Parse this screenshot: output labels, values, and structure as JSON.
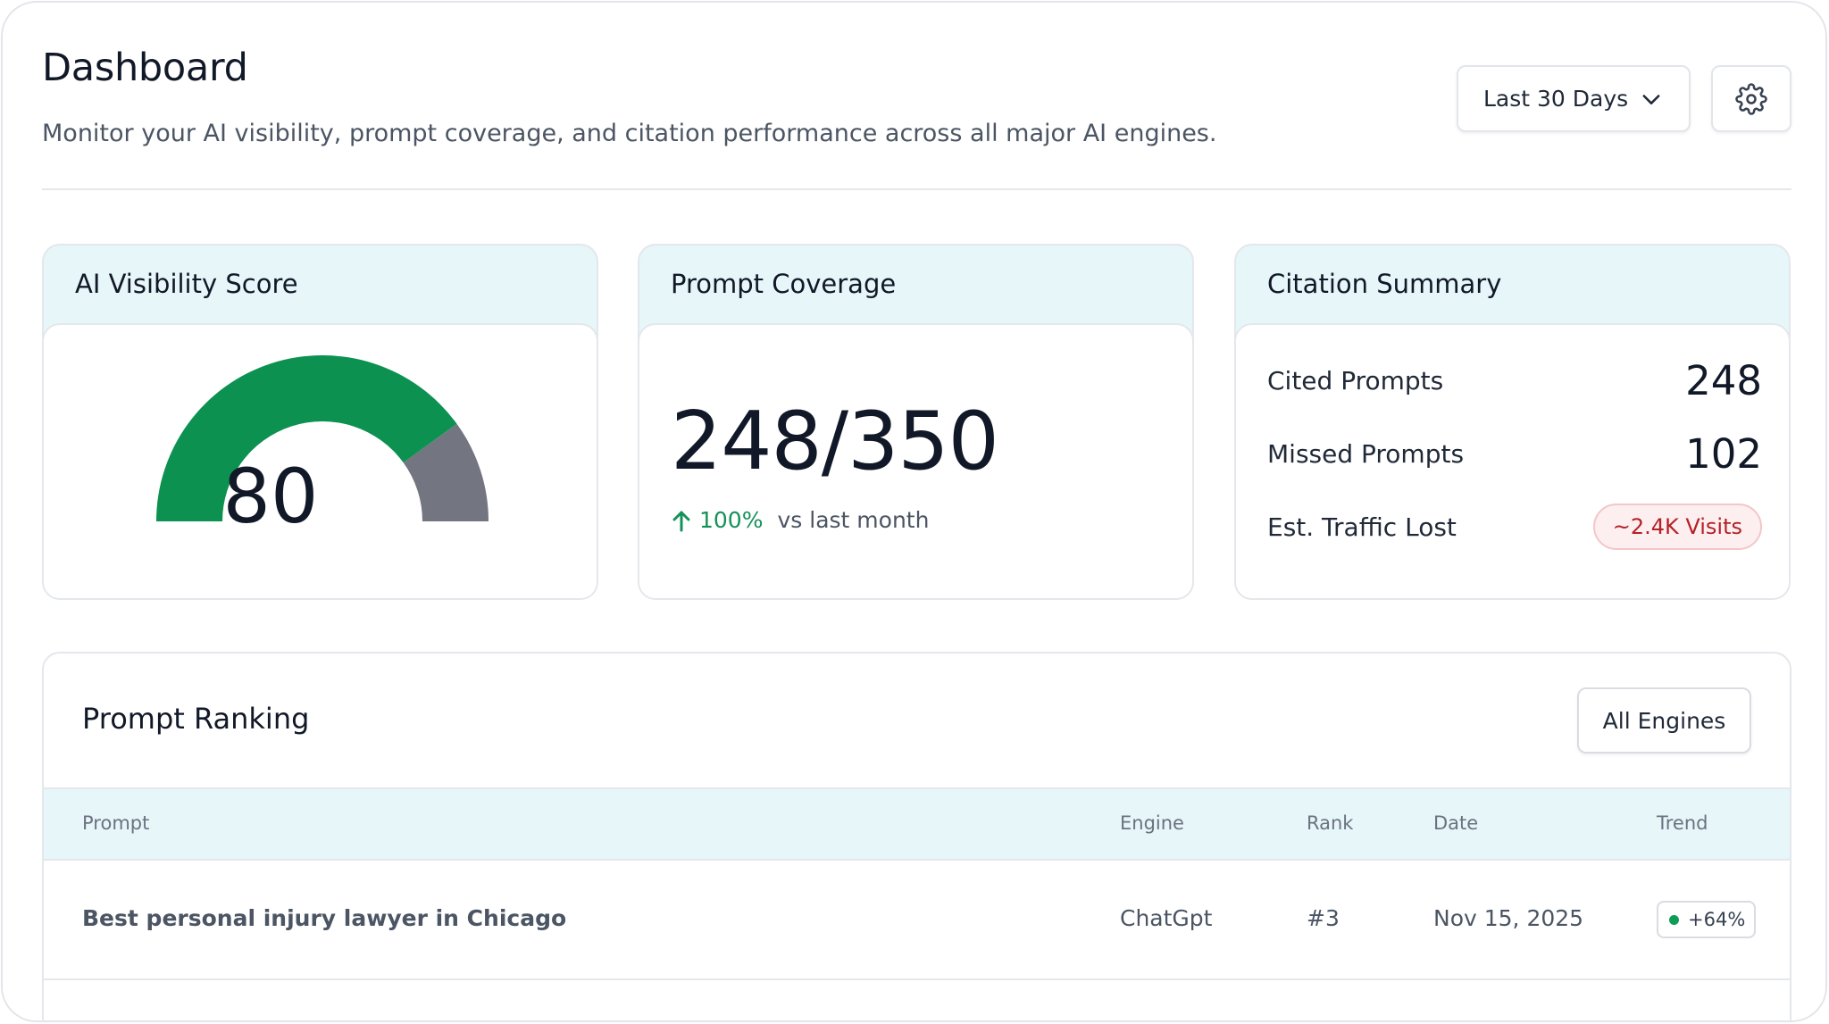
{
  "header": {
    "title": "Dashboard",
    "subtitle": "Monitor your AI visibility, prompt coverage, and citation performance across all major AI engines.",
    "date_range": "Last 30 Days"
  },
  "cards": {
    "visibility": {
      "title": "AI Visibility Score",
      "score": "80",
      "score_fraction": 0.8,
      "colors": {
        "filled": "#0c9150",
        "remaining": "#737680"
      }
    },
    "coverage": {
      "title": "Prompt Coverage",
      "value": "248/350",
      "delta": "100%",
      "delta_label": "vs last month"
    },
    "citation": {
      "title": "Citation Summary",
      "rows": [
        {
          "label": "Cited Prompts",
          "value": "248"
        },
        {
          "label": "Missed Prompts",
          "value": "102"
        }
      ],
      "traffic_label": "Est. Traffic Lost",
      "traffic_value": "~2.4K Visits"
    }
  },
  "ranking": {
    "title": "Prompt Ranking",
    "filter": "All Engines",
    "columns": [
      "Prompt",
      "Engine",
      "Rank",
      "Date",
      "Trend"
    ],
    "rows": [
      {
        "prompt": "Best personal injury lawyer in Chicago",
        "engine": "ChatGpt",
        "rank": "#3",
        "date": "Nov 15, 2025",
        "trend": "+64%"
      }
    ]
  },
  "colors": {
    "accent_green": "#15915a",
    "header_tint": "#e7f6f9",
    "danger": "#b32226"
  }
}
